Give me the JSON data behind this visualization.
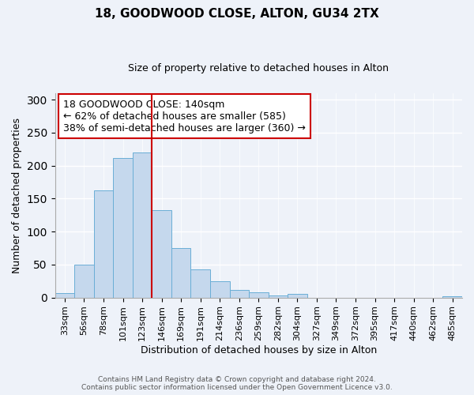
{
  "title": "18, GOODWOOD CLOSE, ALTON, GU34 2TX",
  "subtitle": "Size of property relative to detached houses in Alton",
  "xlabel": "Distribution of detached houses by size in Alton",
  "ylabel": "Number of detached properties",
  "footer_lines": [
    "Contains HM Land Registry data © Crown copyright and database right 2024.",
    "Contains public sector information licensed under the Open Government Licence v3.0."
  ],
  "bar_labels": [
    "33sqm",
    "56sqm",
    "78sqm",
    "101sqm",
    "123sqm",
    "146sqm",
    "169sqm",
    "191sqm",
    "214sqm",
    "236sqm",
    "259sqm",
    "282sqm",
    "304sqm",
    "327sqm",
    "349sqm",
    "372sqm",
    "395sqm",
    "417sqm",
    "440sqm",
    "462sqm",
    "485sqm"
  ],
  "bar_values": [
    7,
    50,
    163,
    211,
    220,
    133,
    75,
    43,
    25,
    11,
    8,
    3,
    5,
    0,
    0,
    0,
    0,
    0,
    0,
    0,
    2
  ],
  "bar_color": "#c5d8ed",
  "bar_edgecolor": "#6aaed6",
  "ylim": [
    0,
    310
  ],
  "yticks": [
    0,
    50,
    100,
    150,
    200,
    250,
    300
  ],
  "vline_x": 5.0,
  "vline_color": "#cc0000",
  "annotation_text": "18 GOODWOOD CLOSE: 140sqm\n← 62% of detached houses are smaller (585)\n38% of semi-detached houses are larger (360) →",
  "annotation_box_edgecolor": "#cc0000",
  "annotation_facecolor": "#ffffff",
  "background_color": "#eef2f9",
  "title_fontsize": 11,
  "subtitle_fontsize": 9,
  "annotation_fontsize": 9,
  "ylabel_fontsize": 9,
  "xlabel_fontsize": 9,
  "tick_fontsize": 8
}
